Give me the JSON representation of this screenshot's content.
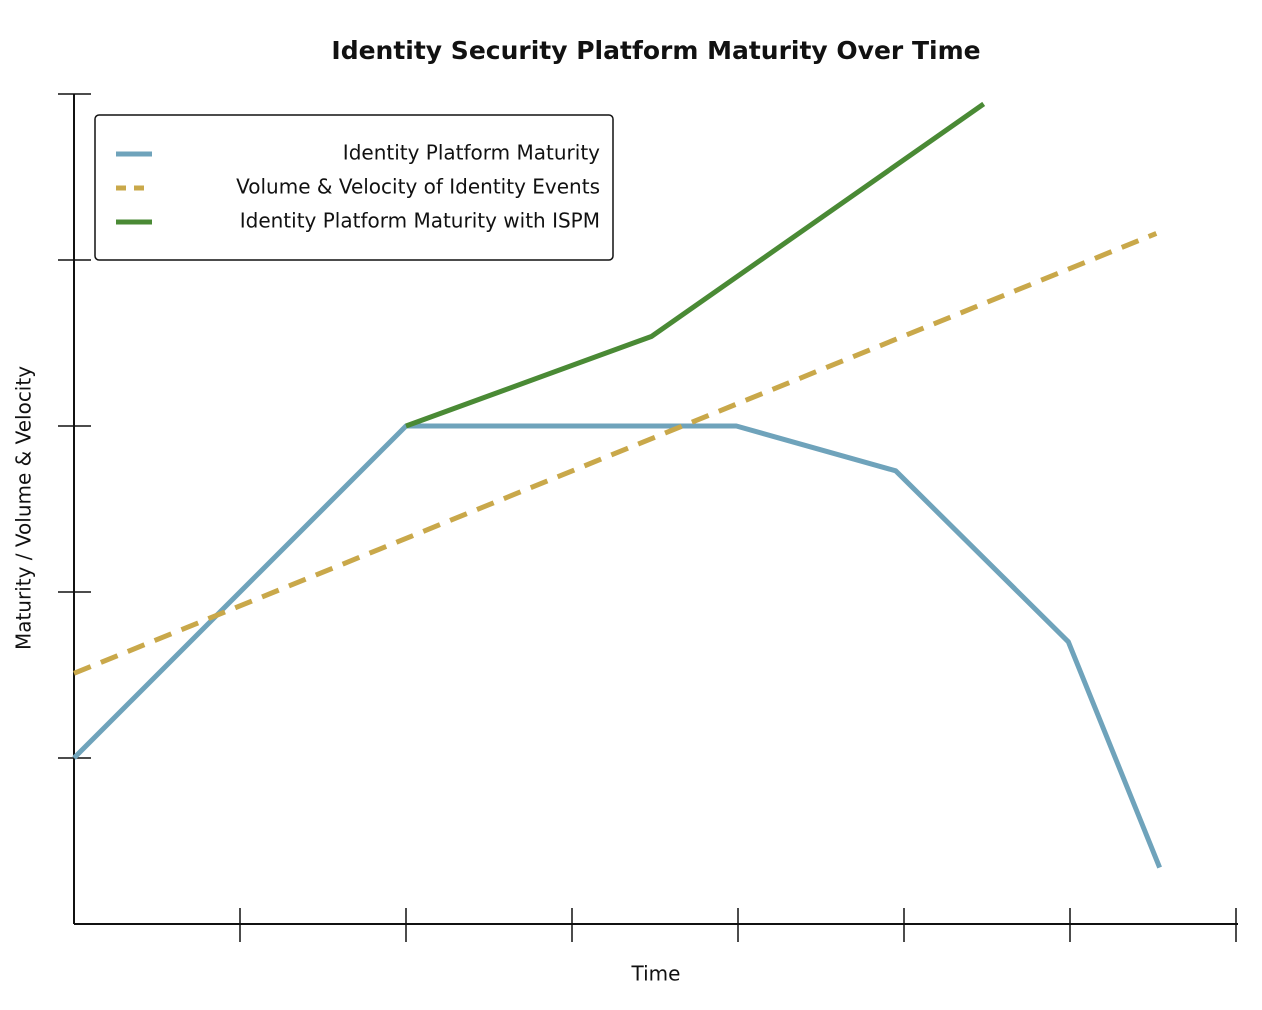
{
  "chart_data": {
    "type": "line",
    "title": "Identity Security Platform Maturity Over Time",
    "xlabel": "Time",
    "ylabel": "Maturity / Volume & Velocity",
    "xlim": [
      0,
      7
    ],
    "ylim": [
      0,
      5
    ],
    "xticks": [
      1,
      2,
      3,
      4,
      5,
      6,
      7
    ],
    "yticks": [
      1,
      2,
      3,
      4,
      5
    ],
    "legend": "upper left",
    "series": [
      {
        "name": "Identity Platform Maturity",
        "color": "#6fa3bb",
        "style": "solid",
        "x": [
          0,
          2,
          3.99,
          4.95,
          5.99,
          6.54
        ],
        "values": [
          1,
          3,
          3,
          2.73,
          1.7,
          0.34
        ]
      },
      {
        "name": "Volume & Velocity of Identity Events",
        "color": "#c9a84a",
        "style": "dashed",
        "x": [
          0,
          6.52
        ],
        "values": [
          1.51,
          4.16
        ]
      },
      {
        "name": "Identity Platform Maturity with ISPM",
        "color": "#4a8a35",
        "style": "solid",
        "x": [
          2,
          3.48,
          5.48
        ],
        "values": [
          3,
          3.54,
          4.94
        ]
      }
    ]
  }
}
